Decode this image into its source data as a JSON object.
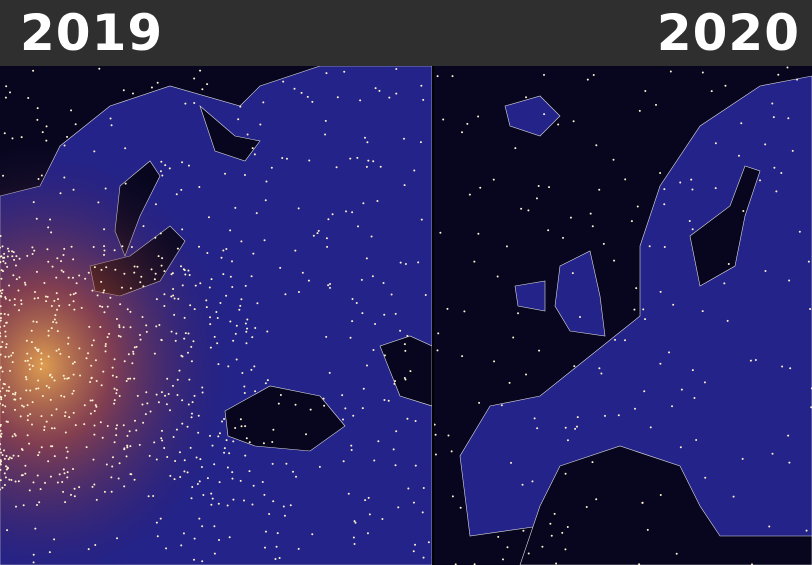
{
  "panels": [
    {
      "label": "2019"
    },
    {
      "label": "2020"
    }
  ]
}
